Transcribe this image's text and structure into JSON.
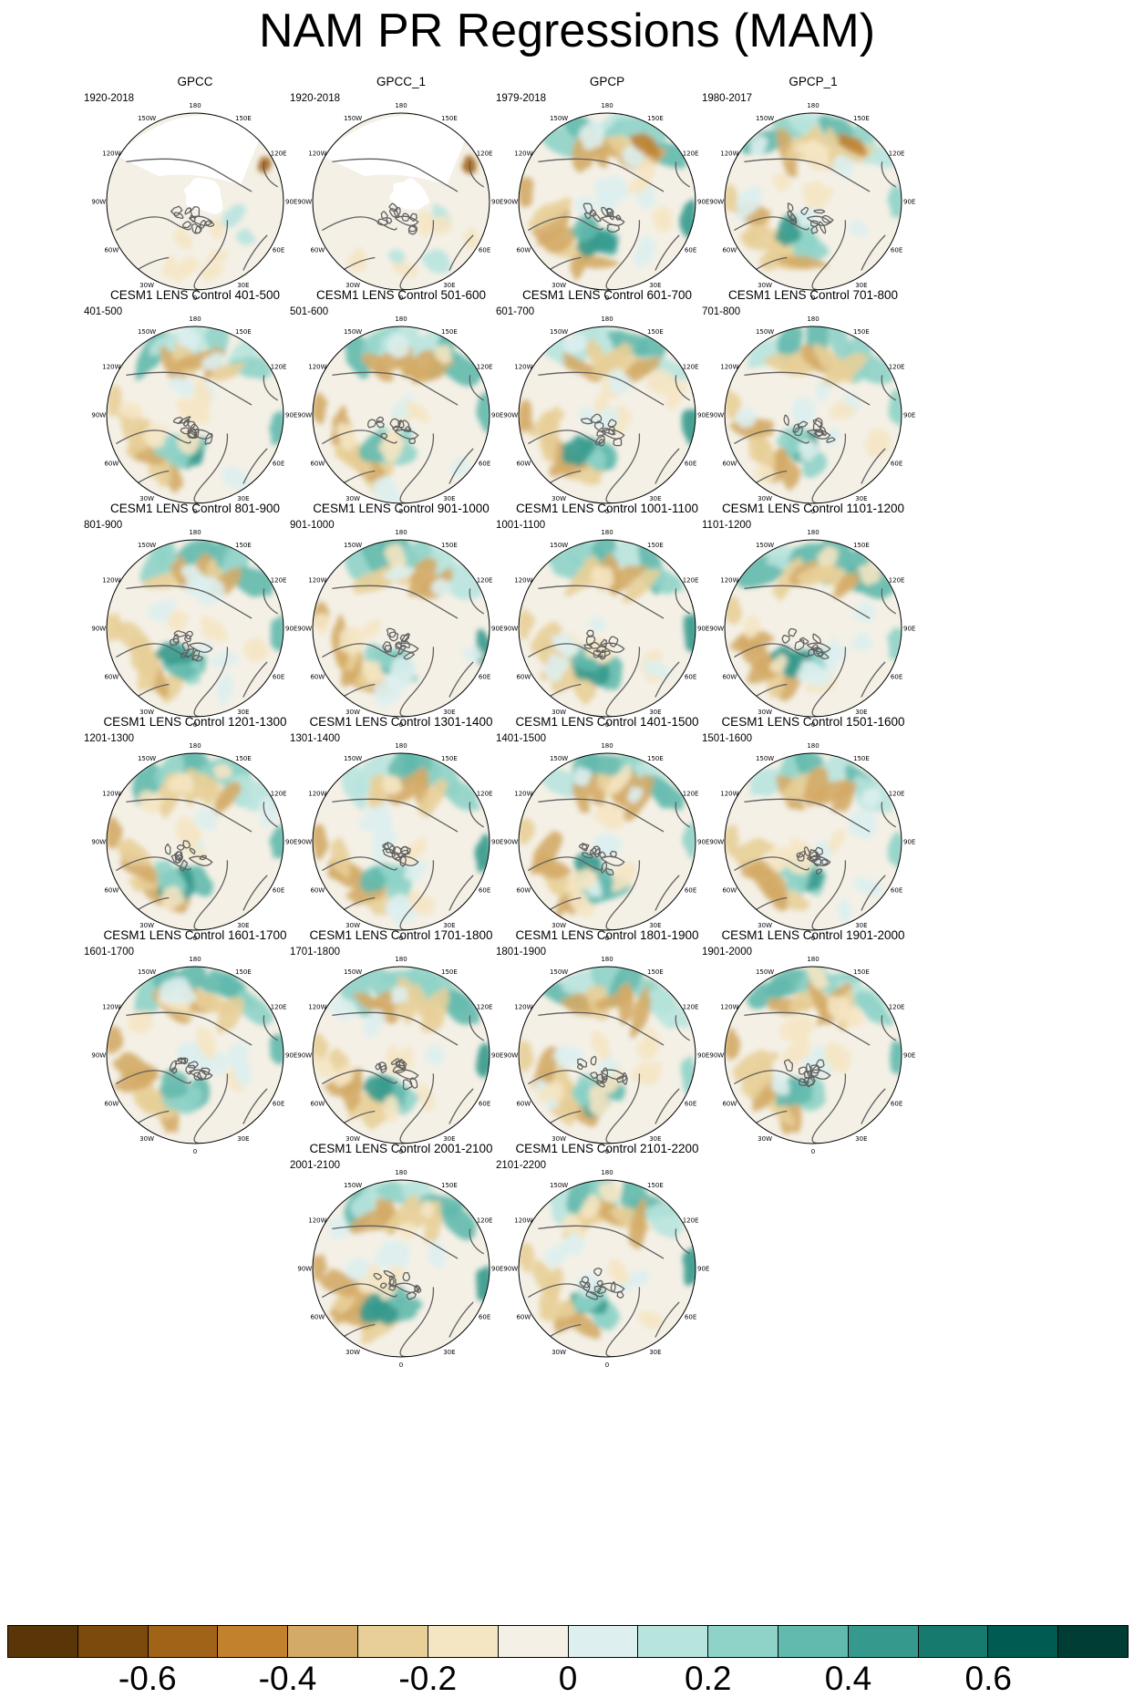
{
  "title": "NAM PR Regressions (MAM)",
  "panels": [
    {
      "title": "GPCC",
      "period": "1920-2018",
      "style": "obs_gpcc"
    },
    {
      "title": "GPCC_1",
      "period": "1920-2018",
      "style": "obs_gpcc"
    },
    {
      "title": "GPCP",
      "period": "1979-2018",
      "style": "obs_gpcp"
    },
    {
      "title": "GPCP_1",
      "period": "1980-2017",
      "style": "obs_gpcp"
    },
    {
      "title": "CESM1 LENS Control 401-500",
      "period": "401-500",
      "style": "model"
    },
    {
      "title": "CESM1 LENS Control 501-600",
      "period": "501-600",
      "style": "model"
    },
    {
      "title": "CESM1 LENS Control 601-700",
      "period": "601-700",
      "style": "model"
    },
    {
      "title": "CESM1 LENS Control 701-800",
      "period": "701-800",
      "style": "model"
    },
    {
      "title": "CESM1 LENS Control 801-900",
      "period": "801-900",
      "style": "model"
    },
    {
      "title": "CESM1 LENS Control 901-1000",
      "period": "901-1000",
      "style": "model"
    },
    {
      "title": "CESM1 LENS Control 1001-1100",
      "period": "1001-1100",
      "style": "model"
    },
    {
      "title": "CESM1 LENS Control 1101-1200",
      "period": "1101-1200",
      "style": "model"
    },
    {
      "title": "CESM1 LENS Control 1201-1300",
      "period": "1201-1300",
      "style": "model"
    },
    {
      "title": "CESM1 LENS Control 1301-1400",
      "period": "1301-1400",
      "style": "model"
    },
    {
      "title": "CESM1 LENS Control 1401-1500",
      "period": "1401-1500",
      "style": "model"
    },
    {
      "title": "CESM1 LENS Control 1501-1600",
      "period": "1501-1600",
      "style": "model"
    },
    {
      "title": "CESM1 LENS Control 1601-1700",
      "period": "1601-1700",
      "style": "model"
    },
    {
      "title": "CESM1 LENS Control 1701-1800",
      "period": "1701-1800",
      "style": "model"
    },
    {
      "title": "CESM1 LENS Control 1801-1900",
      "period": "1801-1900",
      "style": "model"
    },
    {
      "title": "CESM1 LENS Control 1901-2000",
      "period": "1901-2000",
      "style": "model"
    },
    {
      "title": "CESM1 LENS Control 2001-2100",
      "period": "2001-2100",
      "style": "model"
    },
    {
      "title": "CESM1 LENS Control 2101-2200",
      "period": "2101-2200",
      "style": "model"
    }
  ],
  "lon_labels": [
    "180",
    "150E",
    "120E",
    "90E",
    "60E",
    "30E",
    "0",
    "30W",
    "60W",
    "90W",
    "120W",
    "150W"
  ],
  "colorbar": {
    "colors": [
      "#5a3508",
      "#7d4a0e",
      "#a16318",
      "#c2812c",
      "#d4ab66",
      "#e8cf98",
      "#f5e6c3",
      "#f4f0e6",
      "#ddf0ef",
      "#b8e4de",
      "#8fd3c8",
      "#62b9ad",
      "#359a8d",
      "#167a6e",
      "#005c52",
      "#003d34"
    ],
    "tick_labels": [
      "-0.6",
      "-0.4",
      "-0.2",
      "0",
      "0.2",
      "0.4",
      "0.6"
    ]
  },
  "colors": {
    "coast": "#606060",
    "missing": "#ffffff",
    "neutral": "#f4f0e6"
  }
}
